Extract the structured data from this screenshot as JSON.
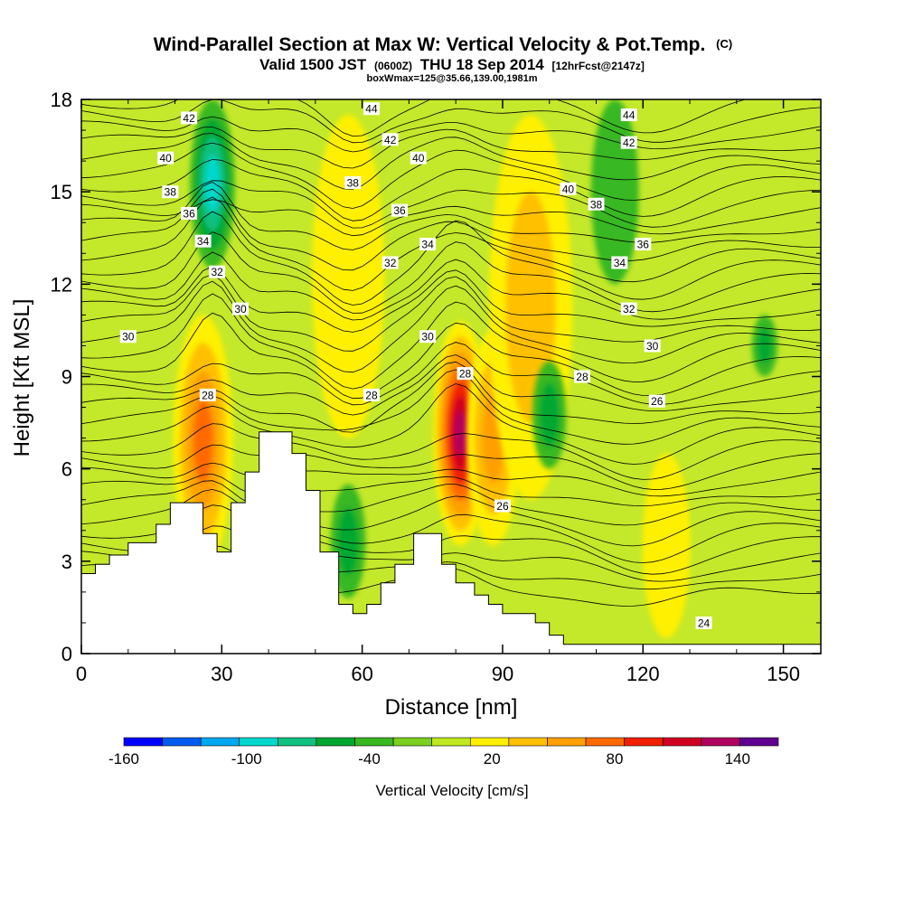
{
  "chart_data": {
    "type": "heatmap",
    "title": "Wind-Parallel Section at Max W: Vertical Velocity & Pot.Temp.",
    "title_mark": "(C)",
    "subtitle_parts": [
      "Valid 1500 JST",
      "(0600Z)",
      "THU 18 Sep 2014",
      "[12hrFcst@2147z]"
    ],
    "subtitle2": "boxWmax=125@35.66,139.00,1981m",
    "xlabel": "Distance [nm]",
    "ylabel": "Height [Kft MSL]",
    "xlim": [
      0,
      158
    ],
    "ylim": [
      0,
      18
    ],
    "x_ticks": [
      0,
      30,
      60,
      90,
      120,
      150
    ],
    "y_ticks": [
      0,
      3,
      6,
      9,
      12,
      15,
      18
    ],
    "colorbar": {
      "label": "Vertical Velocity [cm/s]",
      "ticks": [
        -160,
        -100,
        -40,
        20,
        80,
        140
      ],
      "levels": [
        -160,
        -140,
        -120,
        -100,
        -80,
        -60,
        -40,
        -20,
        0,
        20,
        40,
        60,
        80,
        100,
        120,
        140,
        160
      ],
      "colors": [
        "#0000ff",
        "#005cf0",
        "#00a8f0",
        "#00d8cc",
        "#10c080",
        "#00a830",
        "#38b820",
        "#7cd020",
        "#c0e820",
        "#fff000",
        "#ffc000",
        "#ffa000",
        "#ff6a00",
        "#f02000",
        "#d00020",
        "#b00060",
        "#600090"
      ]
    },
    "updrafts": [
      {
        "x": 26,
        "z0": 2.8,
        "z1": 11,
        "peak": 90
      },
      {
        "x": 81,
        "z0": 3.5,
        "z1": 10.8,
        "peak": 150
      },
      {
        "x": 88,
        "z0": 3.5,
        "z1": 10.5,
        "peak": 60
      },
      {
        "x": 96,
        "z0": 5,
        "z1": 17.5,
        "peak": 40
      },
      {
        "x": 57,
        "z0": 7,
        "z1": 17.5,
        "peak": 35
      },
      {
        "x": 125,
        "z0": 0.5,
        "z1": 6.5,
        "peak": 35
      }
    ],
    "downdrafts": [
      {
        "x": 28,
        "z0": 12.5,
        "z1": 18,
        "peak": -90
      },
      {
        "x": 57,
        "z0": 1.8,
        "z1": 5.5,
        "peak": -50
      },
      {
        "x": 100,
        "z0": 6,
        "z1": 9.5,
        "peak": -45
      },
      {
        "x": 114,
        "z0": 12,
        "z1": 18,
        "peak": -35
      },
      {
        "x": 146,
        "z0": 9,
        "z1": 11,
        "peak": -40
      }
    ],
    "theta_labels": [
      {
        "value": "42",
        "x": 23,
        "z": 17.4
      },
      {
        "value": "44",
        "x": 62,
        "z": 17.7
      },
      {
        "value": "42",
        "x": 66,
        "z": 16.7
      },
      {
        "value": "40",
        "x": 72,
        "z": 16.1
      },
      {
        "value": "44",
        "x": 117,
        "z": 17.5
      },
      {
        "value": "42",
        "x": 117,
        "z": 16.6
      },
      {
        "value": "40",
        "x": 18,
        "z": 16.1
      },
      {
        "value": "38",
        "x": 19,
        "z": 15.0
      },
      {
        "value": "36",
        "x": 23,
        "z": 14.3
      },
      {
        "value": "38",
        "x": 58,
        "z": 15.3
      },
      {
        "value": "36",
        "x": 68,
        "z": 14.4
      },
      {
        "value": "40",
        "x": 104,
        "z": 15.1
      },
      {
        "value": "38",
        "x": 110,
        "z": 14.6
      },
      {
        "value": "34",
        "x": 26,
        "z": 13.4
      },
      {
        "value": "32",
        "x": 29,
        "z": 12.4
      },
      {
        "value": "30",
        "x": 34,
        "z": 11.2
      },
      {
        "value": "30",
        "x": 10,
        "z": 10.3
      },
      {
        "value": "34",
        "x": 74,
        "z": 13.3
      },
      {
        "value": "32",
        "x": 66,
        "z": 12.7
      },
      {
        "value": "36",
        "x": 120,
        "z": 13.3
      },
      {
        "value": "34",
        "x": 115,
        "z": 12.7
      },
      {
        "value": "32",
        "x": 117,
        "z": 11.2
      },
      {
        "value": "30",
        "x": 74,
        "z": 10.3
      },
      {
        "value": "30",
        "x": 122,
        "z": 10.0
      },
      {
        "value": "28",
        "x": 27,
        "z": 8.4
      },
      {
        "value": "28",
        "x": 62,
        "z": 8.4
      },
      {
        "value": "28",
        "x": 82,
        "z": 9.1
      },
      {
        "value": "28",
        "x": 107,
        "z": 9.0
      },
      {
        "value": "26",
        "x": 123,
        "z": 8.2
      },
      {
        "value": "26",
        "x": 90,
        "z": 4.8
      },
      {
        "value": "24",
        "x": 133,
        "z": 1.0
      }
    ],
    "terrain": [
      [
        0,
        2.6
      ],
      [
        3,
        2.6
      ],
      [
        3,
        2.9
      ],
      [
        6,
        2.9
      ],
      [
        6,
        3.2
      ],
      [
        10,
        3.2
      ],
      [
        10,
        3.6
      ],
      [
        16,
        3.6
      ],
      [
        16,
        4.2
      ],
      [
        19,
        4.2
      ],
      [
        19,
        4.9
      ],
      [
        26,
        4.9
      ],
      [
        26,
        3.9
      ],
      [
        29,
        3.9
      ],
      [
        29,
        3.3
      ],
      [
        32,
        3.3
      ],
      [
        32,
        4.9
      ],
      [
        35,
        4.9
      ],
      [
        35,
        5.9
      ],
      [
        38,
        5.9
      ],
      [
        38,
        7.2
      ],
      [
        45,
        7.2
      ],
      [
        45,
        6.5
      ],
      [
        48,
        6.5
      ],
      [
        48,
        5.3
      ],
      [
        51,
        5.3
      ],
      [
        51,
        3.3
      ],
      [
        55,
        3.3
      ],
      [
        55,
        1.6
      ],
      [
        58,
        1.6
      ],
      [
        58,
        1.3
      ],
      [
        61,
        1.3
      ],
      [
        61,
        1.6
      ],
      [
        64,
        1.6
      ],
      [
        64,
        2.3
      ],
      [
        67,
        2.3
      ],
      [
        67,
        2.9
      ],
      [
        71,
        2.9
      ],
      [
        71,
        3.9
      ],
      [
        77,
        3.9
      ],
      [
        77,
        2.9
      ],
      [
        80,
        2.9
      ],
      [
        80,
        2.3
      ],
      [
        84,
        2.3
      ],
      [
        84,
        1.9
      ],
      [
        87,
        1.9
      ],
      [
        87,
        1.6
      ],
      [
        90,
        1.6
      ],
      [
        90,
        1.3
      ],
      [
        97,
        1.3
      ],
      [
        97,
        1.0
      ],
      [
        100,
        1.0
      ],
      [
        100,
        0.6
      ],
      [
        103,
        0.6
      ],
      [
        103,
        0.3
      ],
      [
        158,
        0.3
      ]
    ]
  }
}
